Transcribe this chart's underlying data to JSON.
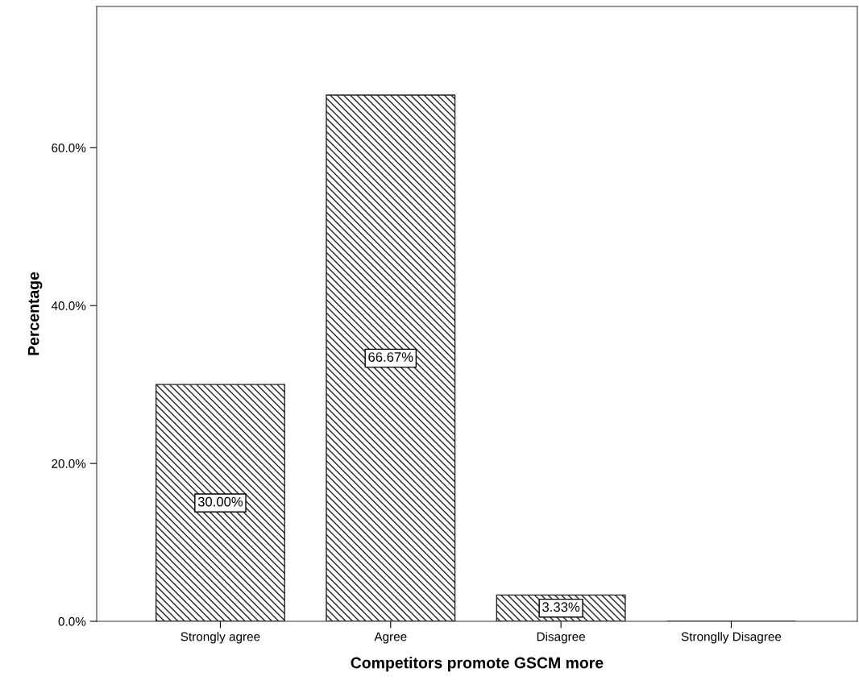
{
  "chart_data": {
    "type": "bar",
    "xlabel": "Competitors promote GSCM more",
    "ylabel": "Percentage",
    "categories": [
      "Strongly agree",
      "Agree",
      "Disagree",
      "Stronglly Disagree"
    ],
    "values": [
      30.0,
      66.67,
      3.33,
      0
    ],
    "value_labels": [
      "30.00%",
      "66.67%",
      "3.33%",
      null
    ],
    "color": "#222222",
    "ylim": [
      0,
      77.9
    ],
    "yticks": [
      {
        "value": 0,
        "label": "0.0%"
      },
      {
        "value": 20,
        "label": "20.0%"
      },
      {
        "value": 40,
        "label": "40.0%"
      },
      {
        "value": 60,
        "label": "60.0%"
      }
    ],
    "grid": false
  }
}
